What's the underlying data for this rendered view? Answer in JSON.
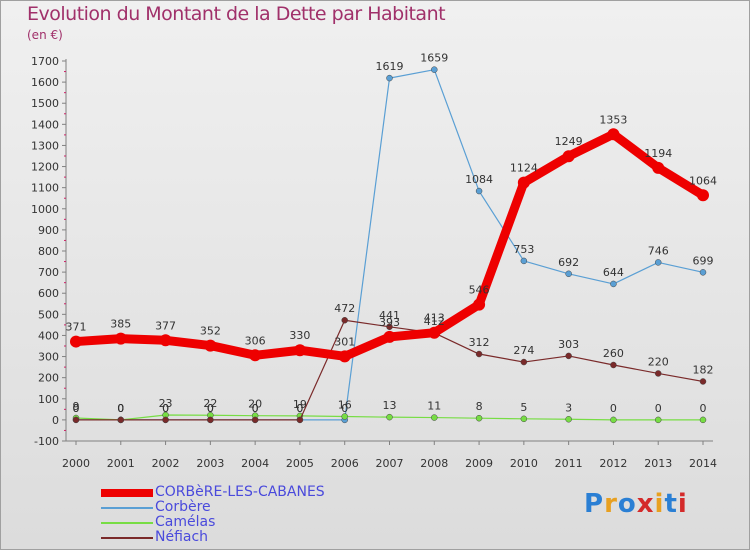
{
  "title": "Evolution du Montant de la Dette par Habitant",
  "subtitle": "(en €)",
  "logo": {
    "text": "Proxiti",
    "colors": [
      "#2a7fd4",
      "#e8a020",
      "#2a7fd4",
      "#d42a2a",
      "#e8a020",
      "#2a7fd4",
      "#d42a2a"
    ]
  },
  "chart_data": {
    "type": "line",
    "x": [
      2000,
      2001,
      2002,
      2003,
      2004,
      2005,
      2006,
      2007,
      2008,
      2009,
      2010,
      2011,
      2012,
      2013,
      2014
    ],
    "ylim": [
      -100,
      1700
    ],
    "yticks": [
      -100,
      0,
      100,
      200,
      300,
      400,
      500,
      600,
      700,
      800,
      900,
      1000,
      1100,
      1200,
      1300,
      1400,
      1500,
      1600,
      1700
    ],
    "grid": false,
    "legend_position": "bottom-left",
    "series": [
      {
        "name": "CORBèRE-LES-CABANES",
        "color": "#ee0000",
        "values": [
          371,
          385,
          377,
          352,
          306,
          330,
          301,
          393,
          413,
          546,
          1124,
          1249,
          1353,
          1194,
          1064
        ],
        "labels": [
          "371",
          "385",
          "377",
          "352",
          "306",
          "330",
          "301",
          "393",
          "413",
          "546",
          "1124",
          "1249",
          "1353",
          "1194",
          "1064"
        ]
      },
      {
        "name": "Corbère",
        "color": "#5a9fd4",
        "values": [
          0,
          0,
          0,
          0,
          0,
          0,
          0,
          1619,
          1659,
          1084,
          753,
          692,
          644,
          746,
          699
        ],
        "labels": [
          "0",
          "0",
          "0",
          "0",
          "0",
          "0",
          "0",
          "1619",
          "1659",
          "1084",
          "753",
          "692",
          "644",
          "746",
          "699"
        ]
      },
      {
        "name": "Camélas",
        "color": "#77dd44",
        "values": [
          9,
          0,
          23,
          22,
          20,
          19,
          16,
          13,
          11,
          8,
          5,
          3,
          0,
          0,
          0
        ],
        "labels": [
          "9",
          "0",
          "23",
          "22",
          "20",
          "19",
          "16",
          "13",
          "11",
          "8",
          "5",
          "3",
          "0",
          "0",
          "0"
        ]
      },
      {
        "name": "Néfiach",
        "color": "#7a2a2a",
        "values": [
          0,
          0,
          0,
          0,
          0,
          0,
          472,
          441,
          412,
          312,
          274,
          303,
          260,
          220,
          182
        ],
        "labels": [
          "0",
          "0",
          "0",
          "0",
          "0",
          "0",
          "472",
          "441",
          "412",
          "312",
          "274",
          "303",
          "260",
          "220",
          "182"
        ]
      }
    ]
  }
}
